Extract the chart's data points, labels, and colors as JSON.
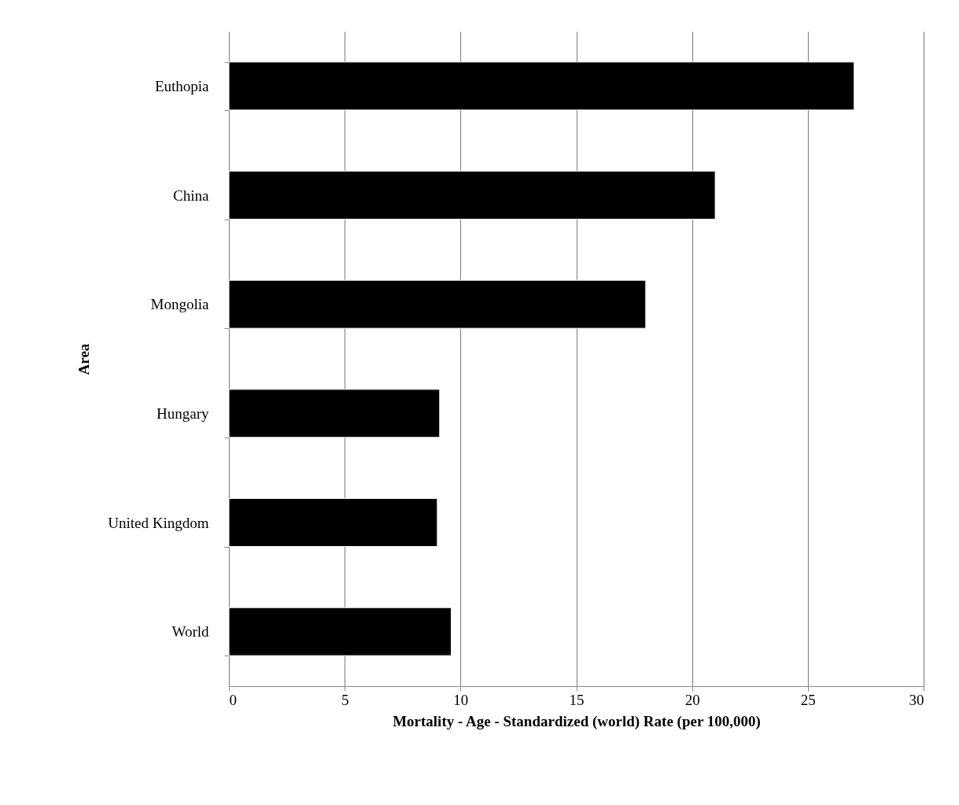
{
  "chart_data": {
    "type": "bar",
    "orientation": "horizontal",
    "xlabel": "Mortality - Age - Standardized (world) Rate (per 100,000)",
    "ylabel": "Area",
    "categories": [
      "Euthopia",
      "China",
      "Mongolia",
      "Hungary",
      "United Kingdom",
      "World"
    ],
    "values": [
      27,
      21,
      18,
      9.1,
      9.0,
      9.6
    ],
    "color": "#000000",
    "xlim": [
      0,
      30
    ],
    "xticks": [
      0,
      5,
      10,
      15,
      20,
      25,
      30
    ],
    "grid": "x"
  }
}
